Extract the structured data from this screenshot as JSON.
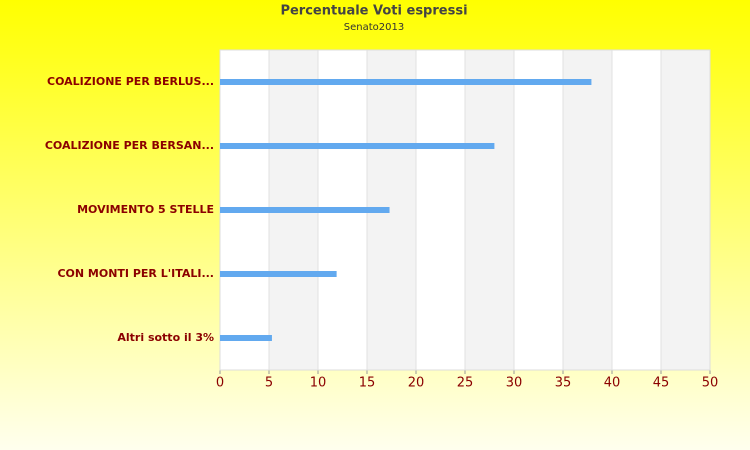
{
  "chart_data": {
    "type": "hbar",
    "title": "Percentuale Voti espressi",
    "subtitle": "Senato2013",
    "categories": [
      "COALIZIONE PER BERLUS...",
      "COALIZIONE PER BERSAN...",
      "MOVIMENTO 5 STELLE",
      "CON MONTI PER L'ITALI...",
      "Altri sotto il 3%"
    ],
    "values": [
      37.9,
      28.0,
      17.3,
      11.9,
      5.3
    ],
    "color": "#62a9ef",
    "xlim": [
      0,
      50
    ],
    "xticks": [
      0,
      5,
      10,
      15,
      20,
      25,
      30,
      35,
      40,
      45,
      50
    ],
    "grid": true
  }
}
